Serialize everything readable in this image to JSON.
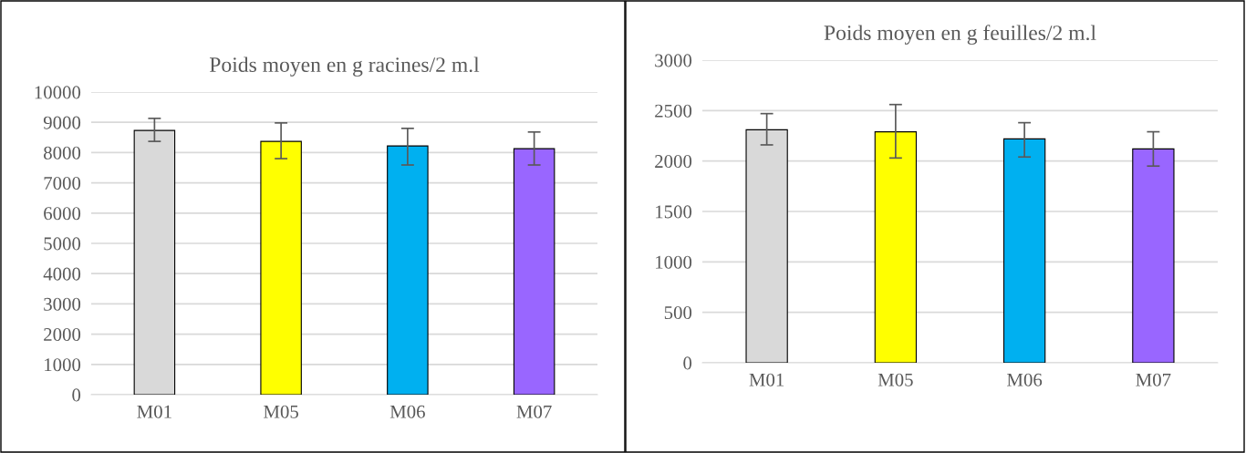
{
  "chart_data": [
    {
      "type": "bar",
      "title": "Poids moyen en g racines/2 m.l",
      "categories": [
        "M01",
        "M05",
        "M06",
        "M07"
      ],
      "values": [
        8730,
        8370,
        8220,
        8130
      ],
      "errors": [
        [
          8370,
          9130
        ],
        [
          7800,
          8980
        ],
        [
          7590,
          8800
        ],
        [
          7590,
          8680
        ]
      ],
      "colors": [
        "#d9d9d9",
        "#ffff00",
        "#00b0f0",
        "#9966ff"
      ],
      "ylim": [
        0,
        10000
      ],
      "yticks": [
        0,
        1000,
        2000,
        3000,
        4000,
        5000,
        6000,
        7000,
        8000,
        9000,
        10000
      ],
      "grid": "y",
      "legend": false
    },
    {
      "type": "bar",
      "title": "Poids moyen en g feuilles/2 m.l",
      "categories": [
        "M01",
        "M05",
        "M06",
        "M07"
      ],
      "values": [
        2310,
        2290,
        2220,
        2120
      ],
      "errors": [
        [
          2160,
          2470
        ],
        [
          2030,
          2560
        ],
        [
          2040,
          2380
        ],
        [
          1950,
          2290
        ]
      ],
      "colors": [
        "#d9d9d9",
        "#ffff00",
        "#00b0f0",
        "#9966ff"
      ],
      "ylim": [
        0,
        3000
      ],
      "yticks": [
        0,
        500,
        1000,
        1500,
        2000,
        2500,
        3000
      ],
      "grid": "y",
      "legend": false
    }
  ]
}
